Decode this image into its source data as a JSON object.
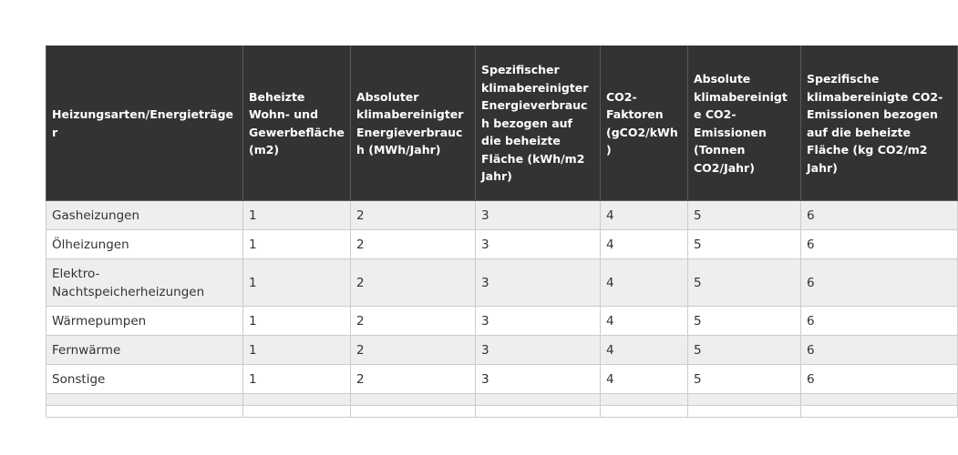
{
  "table": {
    "headers": [
      "Heizungsarten/Energieträger",
      "Beheizte Wohn- und Gewerbefläche (m2)",
      "Absoluter klimabereinigter Energieverbrauch (MWh/Jahr)",
      "Spezifischer klimabereinigter Energieverbrauch bezogen auf die beheizte Fläche (kWh/m2 Jahr)",
      "CO2-Faktoren (gCO2/kWh)",
      "Absolute klimabereinigte CO2-Emissionen (Tonnen CO2/Jahr)",
      "Spezifische klimabereinigte CO2-Emissionen bezogen auf die beheizte Fläche (kg CO2/m2 Jahr)"
    ],
    "rows": [
      [
        "Gasheizungen",
        "1",
        "2",
        "3",
        "4",
        "5",
        "6"
      ],
      [
        "Ölheizungen",
        "1",
        "2",
        "3",
        "4",
        "5",
        "6"
      ],
      [
        "Elektro-Nachtspeicherheizungen",
        "1",
        "2",
        "3",
        "4",
        "5",
        "6"
      ],
      [
        "Wärmepumpen",
        "1",
        "2",
        "3",
        "4",
        "5",
        "6"
      ],
      [
        "Fernwärme",
        "1",
        "2",
        "3",
        "4",
        "5",
        "6"
      ],
      [
        "Sonstige",
        "1",
        "2",
        "3",
        "4",
        "5",
        "6"
      ]
    ]
  }
}
